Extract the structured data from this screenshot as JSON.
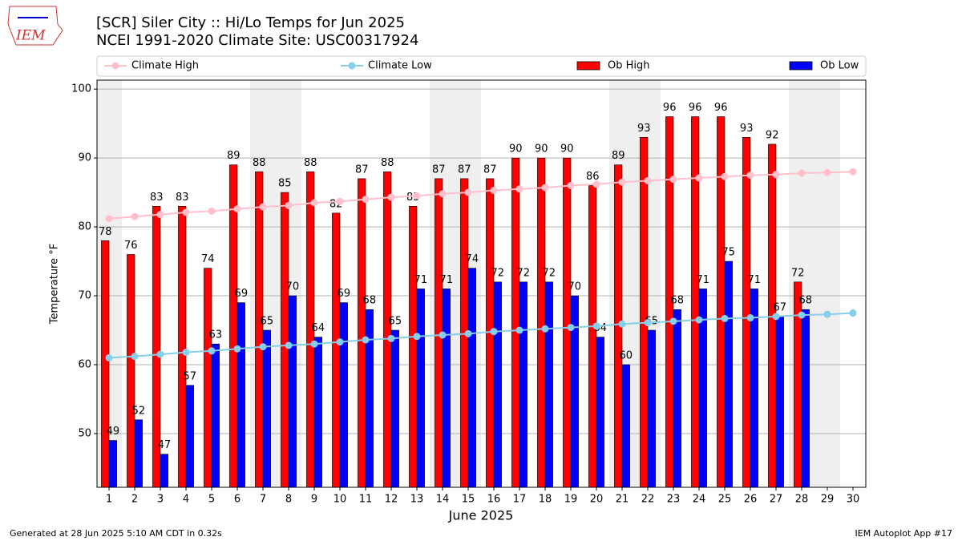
{
  "chart_data": {
    "type": "bar",
    "title": "[SCR] Siler City :: Hi/Lo Temps for Jun 2025",
    "subtitle": "NCEI 1991-2020 Climate Site: USC00317924",
    "x_label": "June 2025",
    "y_label": "Temperature °F",
    "logo_text": "IEM",
    "footer_left": "Generated at 28 Jun 2025 5:10 AM CDT in 0.32s",
    "footer_right": "IEM Autoplot App #17",
    "x": [
      1,
      2,
      3,
      4,
      5,
      6,
      7,
      8,
      9,
      10,
      11,
      12,
      13,
      14,
      15,
      16,
      17,
      18,
      19,
      20,
      21,
      22,
      23,
      24,
      25,
      26,
      27,
      28,
      29,
      30
    ],
    "xlim": [
      0.53,
      30.5
    ],
    "xticks": [
      1,
      2,
      3,
      4,
      5,
      6,
      7,
      8,
      9,
      10,
      11,
      12,
      13,
      14,
      15,
      16,
      17,
      18,
      19,
      20,
      21,
      22,
      23,
      24,
      25,
      26,
      27,
      28,
      29,
      30
    ],
    "ylim": [
      42.2,
      101.3
    ],
    "yticks": [
      50,
      60,
      70,
      80,
      90,
      100
    ],
    "grid": true,
    "weekend_shading": [
      1,
      7,
      8,
      14,
      15,
      21,
      22,
      28,
      29
    ],
    "series": [
      {
        "name": "Climate High",
        "kind": "line",
        "color": "#ffc0cb",
        "values": [
          81.2,
          81.5,
          81.8,
          82.1,
          82.3,
          82.6,
          82.9,
          83.1,
          83.5,
          83.7,
          84.0,
          84.3,
          84.5,
          84.8,
          85.0,
          85.3,
          85.5,
          85.7,
          86.0,
          86.2,
          86.5,
          86.7,
          86.9,
          87.1,
          87.3,
          87.5,
          87.6,
          87.8,
          87.9,
          88.0
        ]
      },
      {
        "name": "Climate Low",
        "kind": "line",
        "color": "#87ceeb",
        "values": [
          61.0,
          61.2,
          61.5,
          61.8,
          62.0,
          62.3,
          62.6,
          62.8,
          63.0,
          63.3,
          63.6,
          63.8,
          64.1,
          64.3,
          64.5,
          64.8,
          65.0,
          65.2,
          65.4,
          65.6,
          65.9,
          66.1,
          66.3,
          66.5,
          66.7,
          66.8,
          67.0,
          67.2,
          67.3,
          67.5
        ]
      },
      {
        "name": "Ob High",
        "kind": "bar",
        "color": "#ff0000",
        "values": [
          78,
          76,
          83,
          83,
          74,
          89,
          88,
          85,
          88,
          82,
          87,
          88,
          83,
          87,
          87,
          87,
          90,
          90,
          90,
          86,
          89,
          93,
          96,
          96,
          96,
          93,
          92,
          72,
          null,
          null
        ]
      },
      {
        "name": "Ob Low",
        "kind": "bar",
        "color": "#0000ff",
        "values": [
          49,
          52,
          47,
          57,
          63,
          69,
          65,
          70,
          64,
          69,
          68,
          65,
          71,
          71,
          74,
          72,
          72,
          72,
          70,
          64,
          60,
          65,
          68,
          71,
          75,
          71,
          67,
          68,
          null,
          null
        ]
      }
    ]
  }
}
